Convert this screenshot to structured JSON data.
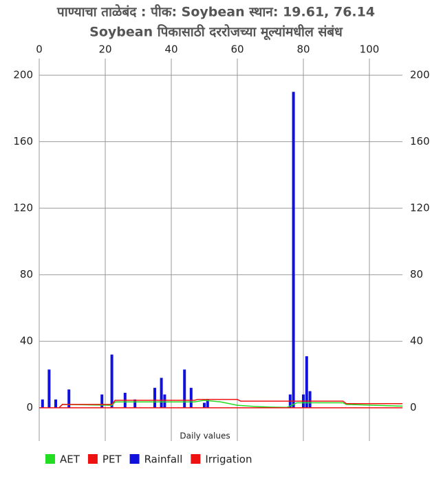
{
  "chart_data": {
    "type": "combo",
    "title": "पाण्याचा ताळेबंद : पीक: Soybean स्थान: 19.61, 76.14",
    "subtitle": "Soybean पिकासाठी  दररोजच्या मूल्यांमधील संबंध",
    "x_label": "Daily values",
    "xlim": [
      0,
      110
    ],
    "xticks": [
      0,
      20,
      40,
      60,
      80,
      100
    ],
    "ylim": [
      -20,
      210
    ],
    "yticks": [
      0,
      40,
      80,
      120,
      160,
      200
    ],
    "grid": true,
    "legend": "bottom-left",
    "series": [
      {
        "name": "AET",
        "type": "line",
        "color": "#22dd22",
        "x": [
          0,
          6,
          7,
          22,
          23,
          47,
          50,
          55,
          60,
          65,
          70,
          75,
          77,
          78,
          92,
          93,
          110
        ],
        "values": [
          0,
          0,
          2,
          1.5,
          3.5,
          3.5,
          4.5,
          3.5,
          1.5,
          0.8,
          0.4,
          0.2,
          2,
          3,
          3,
          2,
          1
        ]
      },
      {
        "name": "PET",
        "type": "line",
        "color": "#ee1111",
        "x": [
          0,
          6,
          7,
          22,
          23,
          47,
          48,
          60,
          61,
          92,
          93,
          110
        ],
        "values": [
          0,
          0,
          2,
          2,
          4.5,
          4.5,
          5,
          5,
          4,
          4,
          2.5,
          2.5
        ]
      },
      {
        "name": "Rainfall",
        "type": "bar",
        "color": "#1111dd",
        "x": [
          1,
          3,
          5,
          9,
          19,
          22,
          26,
          29,
          35,
          37,
          38,
          44,
          46,
          50,
          51,
          76,
          77,
          80,
          81,
          82
        ],
        "values": [
          5,
          23,
          5,
          11,
          8,
          32,
          9,
          5,
          12,
          18,
          8,
          23,
          12,
          3,
          5,
          8,
          190,
          8,
          31,
          10
        ]
      },
      {
        "name": "Irrigation",
        "type": "line",
        "color": "#ee1111",
        "x": [
          0,
          110
        ],
        "values": [
          0,
          0
        ]
      }
    ]
  }
}
